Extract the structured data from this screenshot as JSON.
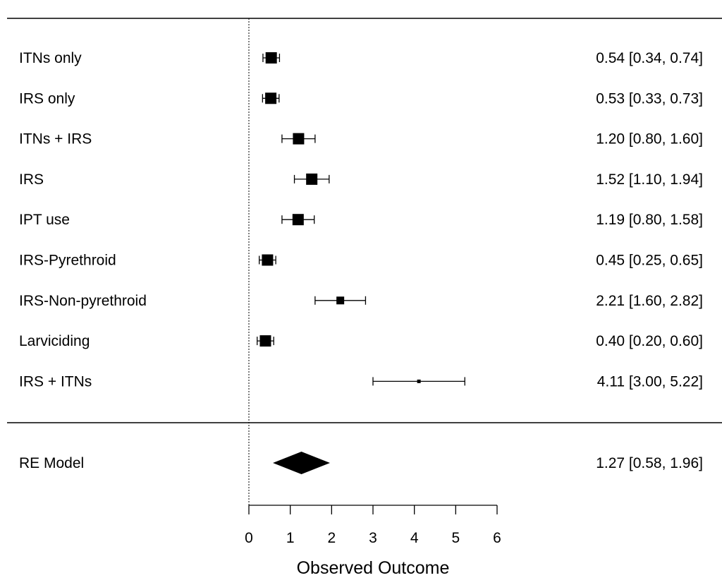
{
  "chart_data": {
    "type": "forest",
    "xlabel": "Observed Outcome",
    "xlim": [
      0,
      6
    ],
    "xticks": [
      "0",
      "1",
      "2",
      "3",
      "4",
      "5",
      "6"
    ],
    "reference_line": 0,
    "studies": [
      {
        "label": "ITNs only",
        "estimate": 0.54,
        "ci_low": 0.34,
        "ci_high": 0.74,
        "text": "0.54 [0.34, 0.74]",
        "weight": "large"
      },
      {
        "label": "IRS only",
        "estimate": 0.53,
        "ci_low": 0.33,
        "ci_high": 0.73,
        "text": "0.53 [0.33, 0.73]",
        "weight": "large"
      },
      {
        "label": "ITNs + IRS",
        "estimate": 1.2,
        "ci_low": 0.8,
        "ci_high": 1.6,
        "text": "1.20 [0.80, 1.60]",
        "weight": "large"
      },
      {
        "label": "IRS",
        "estimate": 1.52,
        "ci_low": 1.1,
        "ci_high": 1.94,
        "text": "1.52 [1.10, 1.94]",
        "weight": "large"
      },
      {
        "label": "IPT use",
        "estimate": 1.19,
        "ci_low": 0.8,
        "ci_high": 1.58,
        "text": "1.19 [0.80, 1.58]",
        "weight": "large"
      },
      {
        "label": "IRS-Pyrethroid",
        "estimate": 0.45,
        "ci_low": 0.25,
        "ci_high": 0.65,
        "text": "0.45 [0.25, 0.65]",
        "weight": "large"
      },
      {
        "label": "IRS-Non-pyrethroid",
        "estimate": 2.21,
        "ci_low": 1.6,
        "ci_high": 2.82,
        "text": "2.21 [1.60, 2.82]",
        "weight": "medium"
      },
      {
        "label": "Larviciding",
        "estimate": 0.4,
        "ci_low": 0.2,
        "ci_high": 0.6,
        "text": "0.40 [0.20, 0.60]",
        "weight": "large"
      },
      {
        "label": "IRS + ITNs",
        "estimate": 4.11,
        "ci_low": 3.0,
        "ci_high": 5.22,
        "text": "4.11 [3.00, 5.22]",
        "weight": "small"
      }
    ],
    "summary": {
      "label": "RE Model",
      "estimate": 1.27,
      "ci_low": 0.58,
      "ci_high": 1.96,
      "text": "1.27 [0.58, 1.96]"
    },
    "colors": {
      "marks": "#000000",
      "background": "#ffffff"
    }
  }
}
